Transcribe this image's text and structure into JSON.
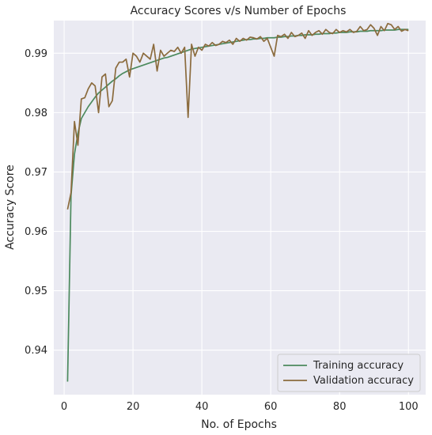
{
  "chart_data": {
    "type": "line",
    "title": "Accuracy Scores v/s Number of Epochs",
    "xlabel": "No. of Epochs",
    "ylabel": "Accuracy Score",
    "xlim": [
      -3,
      105
    ],
    "ylim": [
      0.9325,
      0.9955
    ],
    "xticks": [
      0,
      20,
      40,
      60,
      80,
      100
    ],
    "yticks": [
      0.94,
      0.95,
      0.96,
      0.97,
      0.98,
      0.99
    ],
    "ytick_labels": [
      "0.94",
      "0.95",
      "0.96",
      "0.97",
      "0.98",
      "0.99"
    ],
    "grid": true,
    "legend": "bottom-right",
    "colors": {
      "background": "#eaeaf2",
      "grid": "#ffffff",
      "training": "#4c8a5e",
      "validation": "#8b6b3d"
    },
    "series": [
      {
        "name": "Training accuracy",
        "x": [
          1,
          2,
          3,
          4,
          5,
          6,
          7,
          8,
          9,
          10,
          11,
          12,
          13,
          14,
          15,
          16,
          17,
          18,
          19,
          20,
          21,
          22,
          23,
          24,
          25,
          26,
          27,
          28,
          29,
          30,
          31,
          32,
          33,
          34,
          35,
          36,
          37,
          38,
          39,
          40,
          41,
          42,
          43,
          44,
          45,
          46,
          47,
          48,
          49,
          50,
          51,
          52,
          53,
          54,
          55,
          56,
          57,
          58,
          59,
          60,
          61,
          62,
          63,
          64,
          65,
          66,
          67,
          68,
          69,
          70,
          71,
          72,
          73,
          74,
          75,
          76,
          77,
          78,
          79,
          80,
          81,
          82,
          83,
          84,
          85,
          86,
          87,
          88,
          89,
          90,
          91,
          92,
          93,
          94,
          95,
          96,
          97,
          98,
          99,
          100
        ],
        "values": [
          0.9347,
          0.966,
          0.973,
          0.9765,
          0.979,
          0.98,
          0.981,
          0.9818,
          0.9826,
          0.9833,
          0.9838,
          0.9843,
          0.9848,
          0.9853,
          0.9857,
          0.9862,
          0.9866,
          0.9869,
          0.9872,
          0.9874,
          0.9876,
          0.9878,
          0.988,
          0.9882,
          0.9884,
          0.9886,
          0.9888,
          0.989,
          0.9892,
          0.9893,
          0.9895,
          0.9897,
          0.9899,
          0.9901,
          0.9903,
          0.9905,
          0.9907,
          0.9908,
          0.9909,
          0.991,
          0.9911,
          0.9912,
          0.9913,
          0.9914,
          0.9915,
          0.9916,
          0.9917,
          0.9918,
          0.9919,
          0.992,
          0.9921,
          0.9922,
          0.9923,
          0.9923,
          0.9924,
          0.9924,
          0.9925,
          0.9925,
          0.9926,
          0.9926,
          0.9926,
          0.9927,
          0.9927,
          0.9928,
          0.9928,
          0.9929,
          0.9929,
          0.993,
          0.993,
          0.9931,
          0.9931,
          0.9931,
          0.9932,
          0.9932,
          0.9933,
          0.9933,
          0.9933,
          0.9934,
          0.9934,
          0.9935,
          0.9935,
          0.9935,
          0.9936,
          0.9936,
          0.9936,
          0.9937,
          0.9937,
          0.9937,
          0.9938,
          0.9938,
          0.9938,
          0.9938,
          0.9939,
          0.9939,
          0.9939,
          0.9939,
          0.994,
          0.994,
          0.994,
          0.994
        ]
      },
      {
        "name": "Validation accuracy",
        "x": [
          1,
          2,
          3,
          4,
          5,
          6,
          7,
          8,
          9,
          10,
          11,
          12,
          13,
          14,
          15,
          16,
          17,
          18,
          19,
          20,
          21,
          22,
          23,
          24,
          25,
          26,
          27,
          28,
          29,
          30,
          31,
          32,
          33,
          34,
          35,
          36,
          37,
          38,
          39,
          40,
          41,
          42,
          43,
          44,
          45,
          46,
          47,
          48,
          49,
          50,
          51,
          52,
          53,
          54,
          55,
          56,
          57,
          58,
          59,
          60,
          61,
          62,
          63,
          64,
          65,
          66,
          67,
          68,
          69,
          70,
          71,
          72,
          73,
          74,
          75,
          76,
          77,
          78,
          79,
          80,
          81,
          82,
          83,
          84,
          85,
          86,
          87,
          88,
          89,
          90,
          91,
          92,
          93,
          94,
          95,
          96,
          97,
          98,
          99,
          100
        ],
        "values": [
          0.9637,
          0.9665,
          0.9785,
          0.9745,
          0.9823,
          0.9825,
          0.984,
          0.985,
          0.9845,
          0.98,
          0.986,
          0.9865,
          0.981,
          0.982,
          0.9875,
          0.9885,
          0.9885,
          0.989,
          0.986,
          0.99,
          0.9895,
          0.9885,
          0.99,
          0.9895,
          0.989,
          0.9915,
          0.987,
          0.9905,
          0.9895,
          0.99,
          0.9905,
          0.9903,
          0.991,
          0.99,
          0.991,
          0.9792,
          0.9915,
          0.9895,
          0.991,
          0.9905,
          0.9915,
          0.9912,
          0.9918,
          0.9913,
          0.9915,
          0.992,
          0.9918,
          0.9922,
          0.9915,
          0.9925,
          0.992,
          0.9925,
          0.9922,
          0.9927,
          0.9926,
          0.9924,
          0.9928,
          0.992,
          0.9925,
          0.991,
          0.9895,
          0.993,
          0.9928,
          0.9932,
          0.9925,
          0.9935,
          0.9928,
          0.993,
          0.9934,
          0.9925,
          0.9938,
          0.993,
          0.9935,
          0.9938,
          0.9932,
          0.994,
          0.9935,
          0.9933,
          0.994,
          0.9935,
          0.9938,
          0.9936,
          0.994,
          0.9935,
          0.9937,
          0.9945,
          0.9938,
          0.994,
          0.9948,
          0.9942,
          0.993,
          0.9945,
          0.9938,
          0.995,
          0.9948,
          0.994,
          0.9945,
          0.9937,
          0.994,
          0.9938
        ]
      }
    ]
  }
}
